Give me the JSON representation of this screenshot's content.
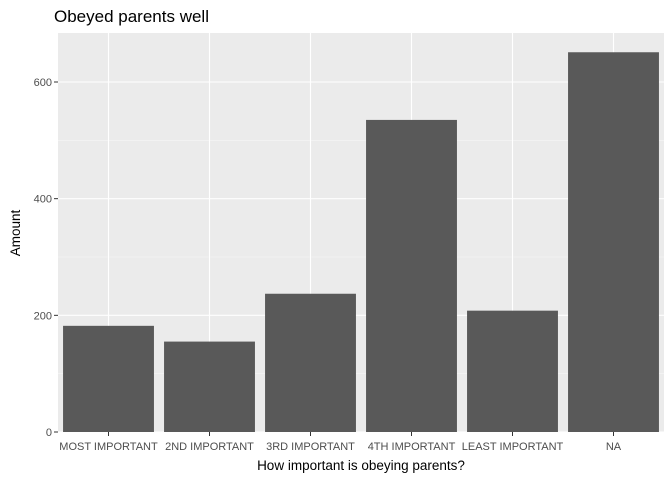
{
  "chart_data": {
    "type": "bar",
    "title": "Obeyed parents well",
    "xlabel": "How important is obeying parents?",
    "ylabel": "Amount",
    "categories": [
      "MOST IMPORTANT",
      "2ND IMPORTANT",
      "3RD IMPORTANT",
      "4TH IMPORTANT",
      "LEAST IMPORTANT",
      "NA"
    ],
    "values": [
      182,
      155,
      237,
      535,
      208,
      651
    ],
    "y_ticks": [
      0,
      200,
      400,
      600
    ],
    "ylim": [
      0,
      684
    ],
    "grid": true,
    "colors": {
      "bar": "#595959",
      "panel": "#ebebeb",
      "grid_major": "#ffffff",
      "grid_minor": "#f5f5f5"
    }
  }
}
